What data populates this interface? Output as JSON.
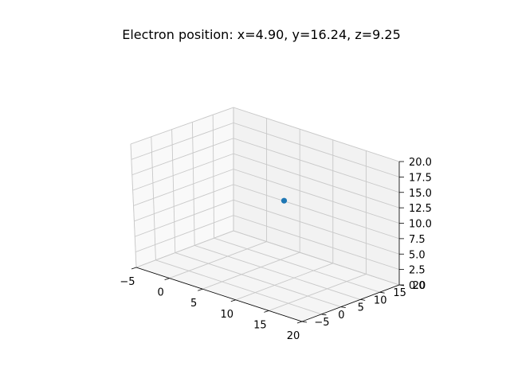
{
  "chart_data": {
    "type": "scatter",
    "projection": "3d",
    "title": "Electron position: x=4.90, y=16.24, z=9.25",
    "xlabel": "",
    "ylabel": "",
    "zlabel": "",
    "xlim": [
      -5,
      20
    ],
    "ylim": [
      -5,
      20
    ],
    "zlim": [
      0,
      20
    ],
    "x_ticks": [
      -5,
      0,
      5,
      10,
      15,
      20
    ],
    "y_ticks": [
      -5,
      0,
      5,
      10,
      15,
      20
    ],
    "z_ticks": [
      0,
      2.5,
      5,
      7.5,
      10,
      12.5,
      15,
      17.5,
      20
    ],
    "x_tick_labels": [
      "−5",
      "0",
      "5",
      "10",
      "15",
      "20"
    ],
    "y_tick_labels": [
      "−5",
      "0",
      "5",
      "10",
      "15",
      "20"
    ],
    "z_tick_labels": [
      "0.0",
      "2.5",
      "5.0",
      "7.5",
      "10.0",
      "12.5",
      "15.0",
      "17.5",
      "20.0"
    ],
    "grid": true,
    "points": [
      {
        "x": 4.9,
        "y": 16.24,
        "z": 9.25,
        "color": "#1f77b4"
      }
    ]
  }
}
